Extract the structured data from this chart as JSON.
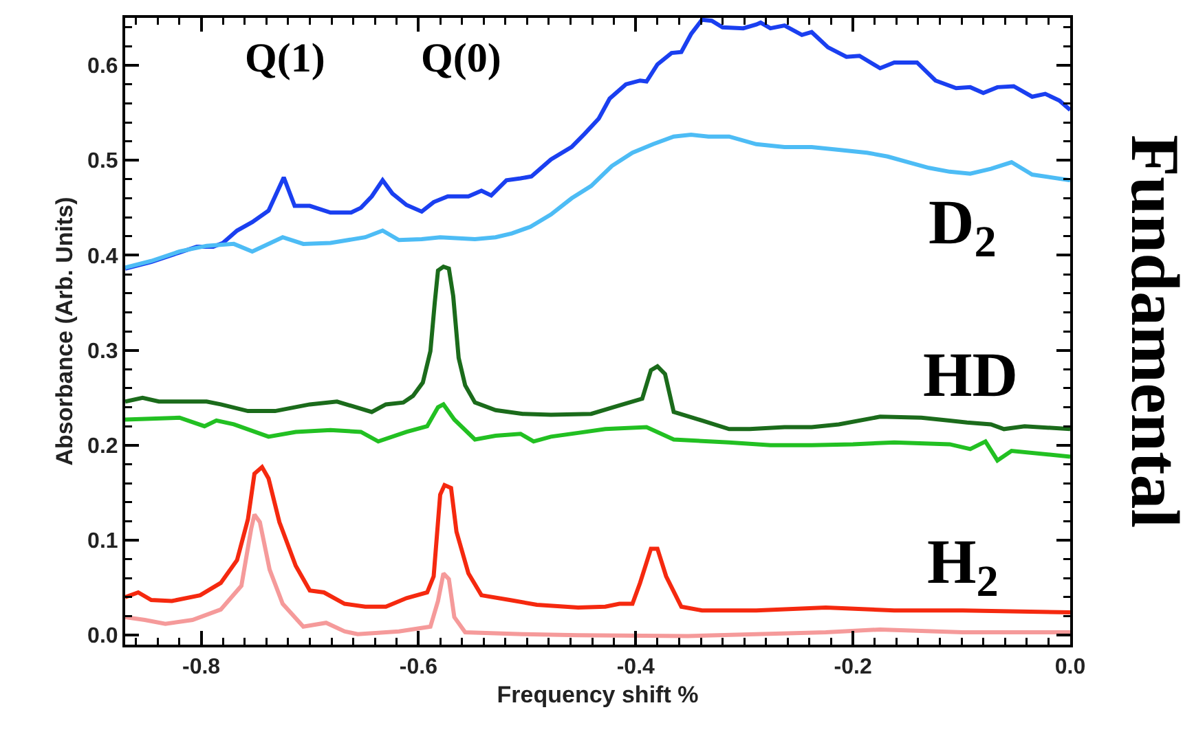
{
  "chart_data": {
    "type": "line",
    "xlabel": "Frequency shift %",
    "ylabel": "Absorbance (Arb. Units)",
    "xlim": [
      -0.87,
      0.0
    ],
    "xticks": [
      -0.8,
      -0.6,
      -0.4,
      -0.2,
      {
        "value": 0,
        "label": "0.0"
      }
    ],
    "ylim": [
      -0.01,
      0.65
    ],
    "yticks": [
      {
        "value": 0,
        "label": "0.0"
      },
      0.1,
      0.2,
      0.3,
      0.4,
      0.5,
      0.6
    ],
    "grid": false,
    "marker": "none",
    "line_style": "solid",
    "series": [
      {
        "color": "#1a3ff0",
        "x": [
          -0.87,
          -0.846,
          -0.82,
          -0.804,
          -0.789,
          -0.78,
          -0.767,
          -0.753,
          -0.738,
          -0.724,
          -0.714,
          -0.7,
          -0.681,
          -0.662,
          -0.653,
          -0.643,
          -0.633,
          -0.624,
          -0.611,
          -0.597,
          -0.586,
          -0.573,
          -0.554,
          -0.542,
          -0.533,
          -0.519,
          -0.506,
          -0.496,
          -0.478,
          -0.459,
          -0.447,
          -0.434,
          -0.424,
          -0.409,
          -0.396,
          -0.39,
          -0.38,
          -0.367,
          -0.358,
          -0.349,
          -0.339,
          -0.33,
          -0.32,
          -0.301,
          -0.289,
          -0.285,
          -0.276,
          -0.263,
          -0.247,
          -0.238,
          -0.223,
          -0.206,
          -0.194,
          -0.175,
          -0.162,
          -0.141,
          -0.124,
          -0.105,
          -0.092,
          -0.08,
          -0.067,
          -0.052,
          -0.035,
          -0.023,
          -0.01,
          0.0
        ],
        "values": [
          0.386,
          0.393,
          0.403,
          0.409,
          0.409,
          0.413,
          0.426,
          0.435,
          0.447,
          0.482,
          0.452,
          0.452,
          0.445,
          0.445,
          0.45,
          0.462,
          0.479,
          0.465,
          0.453,
          0.446,
          0.456,
          0.462,
          0.462,
          0.468,
          0.463,
          0.479,
          0.481,
          0.483,
          0.501,
          0.514,
          0.528,
          0.544,
          0.565,
          0.58,
          0.584,
          0.583,
          0.601,
          0.613,
          0.614,
          0.633,
          0.648,
          0.647,
          0.64,
          0.639,
          0.643,
          0.645,
          0.639,
          0.642,
          0.632,
          0.635,
          0.619,
          0.609,
          0.61,
          0.597,
          0.603,
          0.603,
          0.584,
          0.576,
          0.577,
          0.571,
          0.577,
          0.578,
          0.567,
          0.57,
          0.563,
          0.553
        ]
      },
      {
        "color": "#4dbcf5",
        "x": [
          -0.87,
          -0.846,
          -0.82,
          -0.795,
          -0.77,
          -0.753,
          -0.725,
          -0.706,
          -0.681,
          -0.649,
          -0.633,
          -0.618,
          -0.597,
          -0.58,
          -0.548,
          -0.529,
          -0.514,
          -0.497,
          -0.478,
          -0.459,
          -0.441,
          -0.422,
          -0.403,
          -0.384,
          -0.365,
          -0.349,
          -0.333,
          -0.314,
          -0.289,
          -0.263,
          -0.238,
          -0.213,
          -0.187,
          -0.168,
          -0.149,
          -0.13,
          -0.111,
          -0.092,
          -0.073,
          -0.054,
          -0.035,
          0.0
        ],
        "values": [
          0.387,
          0.394,
          0.404,
          0.41,
          0.412,
          0.404,
          0.419,
          0.412,
          0.413,
          0.419,
          0.426,
          0.416,
          0.417,
          0.419,
          0.417,
          0.419,
          0.423,
          0.43,
          0.443,
          0.46,
          0.473,
          0.494,
          0.508,
          0.517,
          0.525,
          0.527,
          0.525,
          0.525,
          0.517,
          0.514,
          0.514,
          0.511,
          0.508,
          0.504,
          0.498,
          0.492,
          0.488,
          0.486,
          0.491,
          0.498,
          0.485,
          0.479
        ]
      },
      {
        "color": "#1b6b1b",
        "x": [
          -0.87,
          -0.854,
          -0.839,
          -0.814,
          -0.795,
          -0.782,
          -0.757,
          -0.732,
          -0.7,
          -0.675,
          -0.643,
          -0.63,
          -0.614,
          -0.605,
          -0.596,
          -0.589,
          -0.585,
          -0.582,
          -0.577,
          -0.572,
          -0.568,
          -0.563,
          -0.557,
          -0.548,
          -0.529,
          -0.504,
          -0.478,
          -0.441,
          -0.415,
          -0.394,
          -0.386,
          -0.38,
          -0.373,
          -0.365,
          -0.339,
          -0.314,
          -0.295,
          -0.263,
          -0.238,
          -0.213,
          -0.175,
          -0.137,
          -0.111,
          -0.095,
          -0.073,
          -0.061,
          -0.042,
          0.0
        ],
        "values": [
          0.246,
          0.25,
          0.246,
          0.246,
          0.246,
          0.243,
          0.236,
          0.236,
          0.243,
          0.246,
          0.235,
          0.243,
          0.245,
          0.252,
          0.266,
          0.299,
          0.35,
          0.384,
          0.388,
          0.386,
          0.357,
          0.292,
          0.263,
          0.245,
          0.237,
          0.233,
          0.232,
          0.233,
          0.242,
          0.249,
          0.279,
          0.283,
          0.275,
          0.235,
          0.226,
          0.217,
          0.217,
          0.219,
          0.219,
          0.222,
          0.23,
          0.229,
          0.226,
          0.224,
          0.222,
          0.217,
          0.22,
          0.217
        ]
      },
      {
        "color": "#22c022",
        "x": [
          -0.87,
          -0.82,
          -0.797,
          -0.786,
          -0.77,
          -0.738,
          -0.713,
          -0.681,
          -0.653,
          -0.637,
          -0.611,
          -0.592,
          -0.582,
          -0.577,
          -0.567,
          -0.548,
          -0.529,
          -0.506,
          -0.494,
          -0.478,
          -0.453,
          -0.428,
          -0.39,
          -0.365,
          -0.314,
          -0.276,
          -0.238,
          -0.2,
          -0.162,
          -0.111,
          -0.092,
          -0.078,
          -0.067,
          -0.054,
          0.0
        ],
        "values": [
          0.227,
          0.229,
          0.22,
          0.226,
          0.222,
          0.209,
          0.214,
          0.216,
          0.214,
          0.204,
          0.214,
          0.22,
          0.24,
          0.243,
          0.227,
          0.206,
          0.21,
          0.212,
          0.204,
          0.209,
          0.213,
          0.217,
          0.219,
          0.206,
          0.203,
          0.2,
          0.2,
          0.201,
          0.203,
          0.201,
          0.196,
          0.204,
          0.184,
          0.194,
          0.188
        ]
      },
      {
        "color": "#f5290f",
        "x": [
          -0.87,
          -0.858,
          -0.846,
          -0.827,
          -0.801,
          -0.782,
          -0.767,
          -0.757,
          -0.751,
          -0.744,
          -0.738,
          -0.728,
          -0.713,
          -0.7,
          -0.687,
          -0.668,
          -0.649,
          -0.63,
          -0.611,
          -0.592,
          -0.586,
          -0.58,
          -0.576,
          -0.57,
          -0.565,
          -0.554,
          -0.542,
          -0.516,
          -0.491,
          -0.453,
          -0.428,
          -0.415,
          -0.403,
          -0.396,
          -0.386,
          -0.38,
          -0.372,
          -0.358,
          -0.339,
          -0.289,
          -0.225,
          -0.162,
          -0.099,
          0.0
        ],
        "values": [
          0.04,
          0.045,
          0.037,
          0.036,
          0.042,
          0.055,
          0.079,
          0.122,
          0.17,
          0.177,
          0.165,
          0.119,
          0.073,
          0.047,
          0.045,
          0.033,
          0.03,
          0.03,
          0.039,
          0.045,
          0.062,
          0.148,
          0.158,
          0.155,
          0.109,
          0.065,
          0.042,
          0.037,
          0.032,
          0.029,
          0.03,
          0.033,
          0.033,
          0.055,
          0.091,
          0.091,
          0.062,
          0.03,
          0.026,
          0.026,
          0.029,
          0.026,
          0.026,
          0.024
        ]
      },
      {
        "color": "#f59a9a",
        "x": [
          -0.87,
          -0.852,
          -0.833,
          -0.808,
          -0.782,
          -0.763,
          -0.754,
          -0.751,
          -0.746,
          -0.737,
          -0.725,
          -0.706,
          -0.685,
          -0.668,
          -0.656,
          -0.618,
          -0.589,
          -0.582,
          -0.577,
          -0.572,
          -0.567,
          -0.557,
          -0.504,
          -0.453,
          -0.352,
          -0.289,
          -0.225,
          -0.175,
          -0.099,
          0.0
        ],
        "values": [
          0.019,
          0.016,
          0.012,
          0.016,
          0.027,
          0.052,
          0.112,
          0.127,
          0.119,
          0.069,
          0.033,
          0.009,
          0.013,
          0.004,
          0.001,
          0.004,
          0.009,
          0.036,
          0.065,
          0.059,
          0.019,
          0.003,
          0.001,
          0.0,
          -0.001,
          0.001,
          0.003,
          0.006,
          0.003,
          0.003
        ]
      }
    ],
    "annotations": [
      "Q(1)",
      "Q(0)",
      "D$_{2}$",
      "HD",
      "H$_{2}$",
      "Fundamental"
    ]
  }
}
